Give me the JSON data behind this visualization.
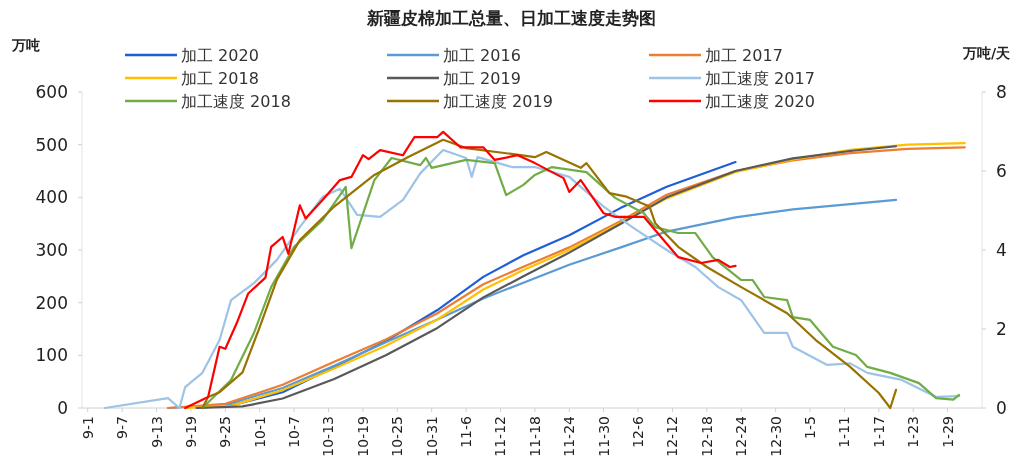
{
  "chart_data": {
    "type": "line",
    "title": "新疆皮棉加工总量、日加工速度走势图",
    "ylabel": "万吨",
    "y2label": "万吨/天",
    "legend": "top",
    "marker": "none",
    "line_style": "solid",
    "xlim": [
      "2020-08-31",
      "2021-02-04"
    ],
    "xticks": [
      {
        "value": "2020-09-01",
        "label": "9-1"
      },
      {
        "value": "2020-09-07",
        "label": "9-7"
      },
      {
        "value": "2020-09-13",
        "label": "9-13"
      },
      {
        "value": "2020-09-19",
        "label": "9-19"
      },
      {
        "value": "2020-09-25",
        "label": "9-25"
      },
      {
        "value": "2020-10-01",
        "label": "10-1"
      },
      {
        "value": "2020-10-07",
        "label": "10-7"
      },
      {
        "value": "2020-10-13",
        "label": "10-13"
      },
      {
        "value": "2020-10-19",
        "label": "10-19"
      },
      {
        "value": "2020-10-25",
        "label": "10-25"
      },
      {
        "value": "2020-10-31",
        "label": "10-31"
      },
      {
        "value": "2020-11-06",
        "label": "11-6"
      },
      {
        "value": "2020-11-12",
        "label": "11-12"
      },
      {
        "value": "2020-11-18",
        "label": "11-18"
      },
      {
        "value": "2020-11-24",
        "label": "11-24"
      },
      {
        "value": "2020-11-30",
        "label": "11-30"
      },
      {
        "value": "2020-12-06",
        "label": "12-6"
      },
      {
        "value": "2020-12-12",
        "label": "12-12"
      },
      {
        "value": "2020-12-18",
        "label": "12-18"
      },
      {
        "value": "2020-12-24",
        "label": "12-24"
      },
      {
        "value": "2020-12-30",
        "label": "12-30"
      },
      {
        "value": "2021-01-05",
        "label": "1-5"
      },
      {
        "value": "2021-01-11",
        "label": "1-11"
      },
      {
        "value": "2021-01-17",
        "label": "1-17"
      },
      {
        "value": "2021-01-23",
        "label": "1-23"
      },
      {
        "value": "2021-01-29",
        "label": "1-29"
      }
    ],
    "ylim": [
      0,
      600
    ],
    "yticks": [
      0,
      100,
      200,
      300,
      400,
      500,
      600
    ],
    "y2lim": [
      0,
      8
    ],
    "y2ticks": [
      0,
      2,
      4,
      6,
      8
    ],
    "series": [
      {
        "name": "加工 2020",
        "color": "#1f5fd6",
        "x": [
          "2020-09-20",
          "2020-09-26",
          "2020-10-05",
          "2020-10-14",
          "2020-10-23",
          "2020-11-01",
          "2020-11-09",
          "2020-11-16",
          "2020-11-24",
          "2020-12-03",
          "2020-12-11",
          "2020-12-23"
        ],
        "values": [
          0,
          5,
          30,
          78,
          127,
          186,
          249,
          290,
          328,
          380,
          420,
          467
        ]
      },
      {
        "name": "加工 2016",
        "color": "#5b9bd5",
        "x": [
          "2020-09-15",
          "2020-09-25",
          "2020-10-05",
          "2020-10-14",
          "2020-10-23",
          "2020-11-01",
          "2020-11-09",
          "2020-11-16",
          "2020-11-24",
          "2020-12-03",
          "2020-12-11",
          "2020-12-23",
          "2021-01-02",
          "2021-01-12",
          "2021-01-20"
        ],
        "values": [
          0,
          6,
          38,
          80,
          125,
          168,
          208,
          238,
          272,
          305,
          335,
          362,
          377,
          387,
          395
        ]
      },
      {
        "name": "加工 2017",
        "color": "#ed7d31",
        "x": [
          "2020-09-15",
          "2020-09-25",
          "2020-10-05",
          "2020-10-14",
          "2020-10-23",
          "2020-11-01",
          "2020-11-09",
          "2020-11-16",
          "2020-11-24",
          "2020-12-03",
          "2020-12-11",
          "2020-12-23",
          "2021-01-02",
          "2021-01-12",
          "2021-01-22",
          "2021-02-01"
        ],
        "values": [
          0,
          8,
          44,
          88,
          130,
          180,
          235,
          268,
          305,
          355,
          405,
          450,
          470,
          484,
          492,
          495
        ]
      },
      {
        "name": "加工 2018",
        "color": "#ffc000",
        "x": [
          "2020-09-18",
          "2020-09-26",
          "2020-10-05",
          "2020-10-14",
          "2020-10-23",
          "2020-11-01",
          "2020-11-09",
          "2020-11-16",
          "2020-11-24",
          "2020-12-03",
          "2020-12-11",
          "2020-12-23",
          "2021-01-02",
          "2021-01-12",
          "2021-01-22",
          "2021-02-01"
        ],
        "values": [
          0,
          4,
          34,
          75,
          118,
          168,
          225,
          262,
          300,
          352,
          398,
          448,
          472,
          490,
          500,
          503
        ]
      },
      {
        "name": "加工 2019",
        "color": "#595959",
        "x": [
          "2020-09-20",
          "2020-09-28",
          "2020-10-05",
          "2020-10-14",
          "2020-10-23",
          "2020-11-01",
          "2020-11-09",
          "2020-11-16",
          "2020-11-24",
          "2020-12-03",
          "2020-12-11",
          "2020-12-23",
          "2021-01-02",
          "2021-01-12",
          "2021-01-20"
        ],
        "values": [
          0,
          3,
          18,
          55,
          100,
          152,
          210,
          250,
          295,
          350,
          400,
          450,
          474,
          488,
          497
        ]
      },
      {
        "name": "加工速度 2017",
        "color": "#9dc3e6",
        "axis": "y2",
        "x": [
          "2020-09-04",
          "2020-09-15",
          "2020-09-17",
          "2020-09-18",
          "2020-09-21",
          "2020-09-24",
          "2020-09-26",
          "2020-09-30",
          "2020-10-04",
          "2020-10-08",
          "2020-10-12",
          "2020-10-15",
          "2020-10-18",
          "2020-10-22",
          "2020-10-26",
          "2020-10-29",
          "2020-11-02",
          "2020-11-06",
          "2020-11-07",
          "2020-11-08",
          "2020-11-14",
          "2020-11-18",
          "2020-11-24",
          "2020-11-30",
          "2020-12-05",
          "2020-12-11",
          "2020-12-16",
          "2020-12-20",
          "2020-12-24",
          "2020-12-28",
          "2021-01-01",
          "2021-01-02",
          "2021-01-08",
          "2021-01-12",
          "2021-01-15",
          "2021-01-21",
          "2021-01-27",
          "2021-01-31"
        ],
        "values": [
          0,
          0.25,
          0,
          0.53,
          0.89,
          1.72,
          2.73,
          3.16,
          3.75,
          4.58,
          5.35,
          5.55,
          4.89,
          4.84,
          5.27,
          5.94,
          6.53,
          6.33,
          5.85,
          6.35,
          6.1,
          6.1,
          5.85,
          5.1,
          4.58,
          4.0,
          3.57,
          3.06,
          2.73,
          1.9,
          1.9,
          1.55,
          1.09,
          1.13,
          0.89,
          0.71,
          0.28,
          0.3
        ]
      },
      {
        "name": "加工速度 2018",
        "color": "#70ad47",
        "axis": "y2",
        "x": [
          "2020-09-21",
          "2020-09-26",
          "2020-09-30",
          "2020-10-03",
          "2020-10-07",
          "2020-10-12",
          "2020-10-16",
          "2020-10-17",
          "2020-10-21",
          "2020-10-24",
          "2020-10-29",
          "2020-10-30",
          "2020-10-31",
          "2020-11-06",
          "2020-11-11",
          "2020-11-13",
          "2020-11-16",
          "2020-11-18",
          "2020-11-21",
          "2020-11-27",
          "2020-12-02",
          "2020-12-07",
          "2020-12-09",
          "2020-12-13",
          "2020-12-16",
          "2020-12-19",
          "2020-12-24",
          "2020-12-26",
          "2020-12-28",
          "2021-01-01",
          "2021-01-02",
          "2021-01-05",
          "2021-01-09",
          "2021-01-13",
          "2021-01-15",
          "2021-01-19",
          "2021-01-24",
          "2021-01-27",
          "2021-01-30",
          "2021-01-31"
        ],
        "values": [
          0,
          0.71,
          1.9,
          3.06,
          4.08,
          4.76,
          5.6,
          4.05,
          5.77,
          6.33,
          6.15,
          6.33,
          6.08,
          6.28,
          6.2,
          5.39,
          5.65,
          5.9,
          6.1,
          5.97,
          5.32,
          4.93,
          4.58,
          4.43,
          4.43,
          3.82,
          3.24,
          3.24,
          2.81,
          2.73,
          2.3,
          2.23,
          1.55,
          1.34,
          1.04,
          0.89,
          0.63,
          0.25,
          0.21,
          0.33
        ]
      },
      {
        "name": "加工速度 2019",
        "color": "#997300",
        "axis": "y2",
        "x": [
          "2020-09-21",
          "2020-09-22",
          "2020-09-24",
          "2020-09-28",
          "2020-10-01",
          "2020-10-04",
          "2020-10-08",
          "2020-10-14",
          "2020-10-21",
          "2020-10-27",
          "2020-11-02",
          "2020-11-06",
          "2020-11-13",
          "2020-11-18",
          "2020-11-20",
          "2020-11-26",
          "2020-11-27",
          "2020-12-01",
          "2020-12-04",
          "2020-12-08",
          "2020-12-09",
          "2020-12-13",
          "2020-12-18",
          "2020-12-24",
          "2021-01-01",
          "2021-01-06",
          "2021-01-12",
          "2021-01-17",
          "2021-01-19",
          "2021-01-20"
        ],
        "values": [
          0,
          0.28,
          0.4,
          0.9,
          2.05,
          3.25,
          4.25,
          5.1,
          5.9,
          6.36,
          6.79,
          6.58,
          6.45,
          6.35,
          6.48,
          6.08,
          6.2,
          5.44,
          5.35,
          5.1,
          4.68,
          4.08,
          3.57,
          3.06,
          2.4,
          1.72,
          1.04,
          0.38,
          0,
          0.46
        ]
      },
      {
        "name": "加工速度 2020",
        "color": "#ff0000",
        "axis": "y2",
        "x": [
          "2020-09-18",
          "2020-09-22",
          "2020-09-24",
          "2020-09-25",
          "2020-09-27",
          "2020-09-29",
          "2020-10-02",
          "2020-10-03",
          "2020-10-05",
          "2020-10-06",
          "2020-10-08",
          "2020-10-09",
          "2020-10-12",
          "2020-10-15",
          "2020-10-17",
          "2020-10-19",
          "2020-10-20",
          "2020-10-22",
          "2020-10-26",
          "2020-10-28",
          "2020-11-01",
          "2020-11-02",
          "2020-11-05",
          "2020-11-09",
          "2020-11-11",
          "2020-11-15",
          "2020-11-18",
          "2020-11-23",
          "2020-11-24",
          "2020-11-26",
          "2020-11-30",
          "2020-12-02",
          "2020-12-07",
          "2020-12-09",
          "2020-12-13",
          "2020-12-17",
          "2020-12-20",
          "2020-12-22",
          "2020-12-23"
        ],
        "values": [
          0,
          0.28,
          1.55,
          1.5,
          2.15,
          2.9,
          3.3,
          4.08,
          4.33,
          3.9,
          5.13,
          4.8,
          5.27,
          5.77,
          5.85,
          6.4,
          6.3,
          6.53,
          6.4,
          6.86,
          6.86,
          6.99,
          6.6,
          6.6,
          6.28,
          6.4,
          6.2,
          5.82,
          5.47,
          5.77,
          4.93,
          4.84,
          4.84,
          4.5,
          3.82,
          3.67,
          3.75,
          3.57,
          3.6
        ]
      }
    ]
  }
}
